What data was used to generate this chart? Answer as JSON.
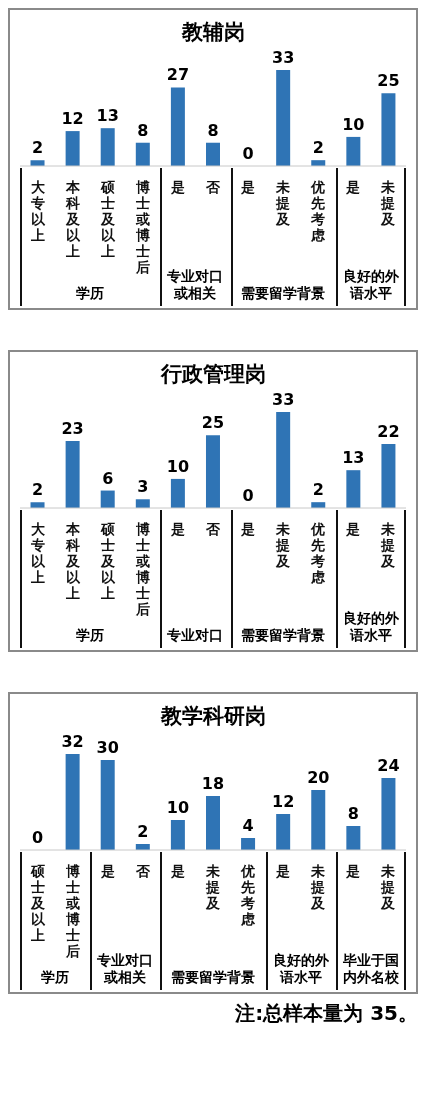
{
  "chart_data": [
    {
      "type": "bar",
      "title": "教辅岗",
      "categories": [
        "大专以上",
        "本科及以上",
        "硕士及以上",
        "博士或博士后",
        "是",
        "否",
        "是",
        "未提及",
        "优先考虑",
        "是",
        "未提及"
      ],
      "values": [
        2,
        12,
        13,
        8,
        27,
        8,
        0,
        33,
        2,
        10,
        25
      ],
      "color": "#2f74b5",
      "data_labels": true,
      "annotations": [
        "学历",
        "专业对口或相关",
        "需要留学背景",
        "良好的外语水平"
      ]
    },
    {
      "type": "bar",
      "title": "行政管理岗",
      "categories": [
        "大专以上",
        "本科及以上",
        "硕士及以上",
        "博士或博士后",
        "是",
        "否",
        "是",
        "未提及",
        "优先考虑",
        "是",
        "未提及"
      ],
      "values": [
        2,
        23,
        6,
        3,
        10,
        25,
        0,
        33,
        2,
        13,
        22
      ],
      "color": "#2f74b5",
      "data_labels": true,
      "annotations": [
        "学历",
        "专业对口",
        "需要留学背景",
        "良好的外语水平"
      ]
    },
    {
      "type": "bar",
      "title": "教学科研岗",
      "categories": [
        "硕士及以上",
        "博士或博士后",
        "是",
        "否",
        "是",
        "未提及",
        "优先考虑",
        "是",
        "未提及",
        "是",
        "未提及"
      ],
      "values": [
        0,
        32,
        30,
        2,
        10,
        18,
        4,
        12,
        20,
        8,
        24
      ],
      "color": "#2f74b5",
      "data_labels": true,
      "annotations": [
        "学历",
        "专业对口或相关",
        "需要留学背景",
        "良好的外语水平",
        "毕业于国内外名校",
        "注:总样本量为 35。"
      ]
    }
  ]
}
